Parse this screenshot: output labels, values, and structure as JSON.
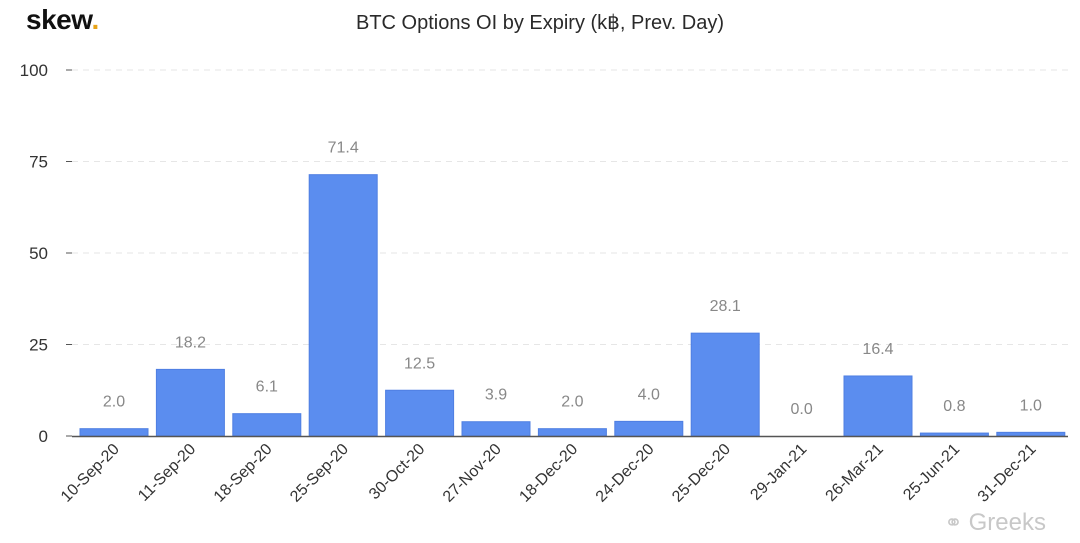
{
  "logo": {
    "text": "skew",
    "dot": "."
  },
  "watermark": {
    "text": "Greeks",
    "icon": "wechat-icon"
  },
  "colors": {
    "bar": "#5b8def",
    "bar_dark": "#4f7fe2",
    "grid": "#e6e6e6",
    "axis": "#555555"
  },
  "chart_data": {
    "type": "bar",
    "title": "BTC Options OI by Expiry (k฿, Prev. Day)",
    "categories": [
      "10-Sep-20",
      "11-Sep-20",
      "18-Sep-20",
      "25-Sep-20",
      "30-Oct-20",
      "27-Nov-20",
      "18-Dec-20",
      "24-Dec-20",
      "25-Dec-20",
      "29-Jan-21",
      "26-Mar-21",
      "25-Jun-21",
      "31-Dec-21"
    ],
    "values": [
      2.0,
      18.2,
      6.1,
      71.4,
      12.5,
      3.9,
      2.0,
      4.0,
      28.1,
      0.0,
      16.4,
      0.8,
      1.0
    ],
    "data_labels": [
      "2.0",
      "18.2",
      "6.1",
      "71.4",
      "12.5",
      "3.9",
      "2.0",
      "4.0",
      "28.1",
      "0.0",
      "16.4",
      "0.8",
      "1.0"
    ],
    "y_ticks": [
      "0",
      "25",
      "50",
      "75",
      "100"
    ],
    "ylim": [
      0,
      100
    ],
    "grid": true
  }
}
